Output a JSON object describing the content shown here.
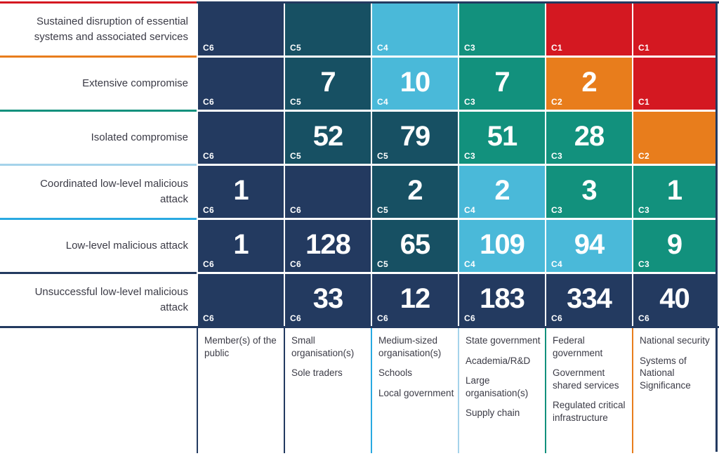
{
  "chart_data": {
    "type": "heatmap",
    "description": "Cyber incident categorisation matrix: count of incidents by severity (rows) and impacted sector (columns), cell colour/category C1 (most severe) to C6 (least severe)",
    "row_labels": [
      "Sustained disruption of essential systems and associated services",
      "Extensive compromise",
      "Isolated compromise",
      "Coordinated low-level malicious attack",
      "Low-level malicious attack",
      "Unsuccessful low-level malicious attack"
    ],
    "column_labels": [
      [
        "Member(s) of the public"
      ],
      [
        "Small organisation(s)",
        "Sole traders"
      ],
      [
        "Medium-sized organisation(s)",
        "Schools",
        "Local government"
      ],
      [
        "State government",
        "Academia/R&D",
        "Large organisation(s)",
        "Supply chain"
      ],
      [
        "Federal government",
        "Government shared services",
        "Regulated critical infrastructure"
      ],
      [
        "National security",
        "Systems of National Significance"
      ]
    ],
    "cells": [
      [
        {
          "cat": "C6",
          "value": null
        },
        {
          "cat": "C5",
          "value": null
        },
        {
          "cat": "C4",
          "value": null
        },
        {
          "cat": "C3",
          "value": null
        },
        {
          "cat": "C1",
          "value": null
        },
        {
          "cat": "C1",
          "value": null
        }
      ],
      [
        {
          "cat": "C6",
          "value": null
        },
        {
          "cat": "C5",
          "value": 7
        },
        {
          "cat": "C4",
          "value": 10
        },
        {
          "cat": "C3",
          "value": 7
        },
        {
          "cat": "C2",
          "value": 2
        },
        {
          "cat": "C1",
          "value": null
        }
      ],
      [
        {
          "cat": "C6",
          "value": null
        },
        {
          "cat": "C5",
          "value": 52
        },
        {
          "cat": "C5",
          "value": 79
        },
        {
          "cat": "C3",
          "value": 51
        },
        {
          "cat": "C3",
          "value": 28
        },
        {
          "cat": "C2",
          "value": null
        }
      ],
      [
        {
          "cat": "C6",
          "value": 1
        },
        {
          "cat": "C6",
          "value": null
        },
        {
          "cat": "C5",
          "value": 2
        },
        {
          "cat": "C4",
          "value": 2
        },
        {
          "cat": "C3",
          "value": 3
        },
        {
          "cat": "C3",
          "value": 1
        }
      ],
      [
        {
          "cat": "C6",
          "value": 1
        },
        {
          "cat": "C6",
          "value": 128
        },
        {
          "cat": "C5",
          "value": 65
        },
        {
          "cat": "C4",
          "value": 109
        },
        {
          "cat": "C4",
          "value": 94
        },
        {
          "cat": "C3",
          "value": 9
        }
      ],
      [
        {
          "cat": "C6",
          "value": null
        },
        {
          "cat": "C6",
          "value": 33
        },
        {
          "cat": "C6",
          "value": 12
        },
        {
          "cat": "C6",
          "value": 183
        },
        {
          "cat": "C6",
          "value": 334
        },
        {
          "cat": "C6",
          "value": 40
        }
      ]
    ],
    "category_colors": {
      "C1": "#d41821",
      "C2": "#e87d1c",
      "C3": "#12917d",
      "C4": "#4ab9d9",
      "C5": "#175063",
      "C6": "#233a60"
    },
    "legend_position": "none",
    "grid": "white gaps between cells"
  },
  "colors": {
    "row_separator_lines_top_to_bottom": [
      "#d41821",
      "#e87d1c",
      "#12917d",
      "#a5d3ea",
      "#29a9e1",
      "#233a60",
      "#233a60"
    ],
    "footer_divider_lines_left_to_right": [
      "#233a60",
      "#233a60",
      "#29a9e1",
      "#a5d3ea",
      "#12917d",
      "#e87d1c"
    ],
    "matrix_outer_border": "#233a60",
    "label_text": "#3b3b46",
    "cell_text": "#ffffff"
  }
}
